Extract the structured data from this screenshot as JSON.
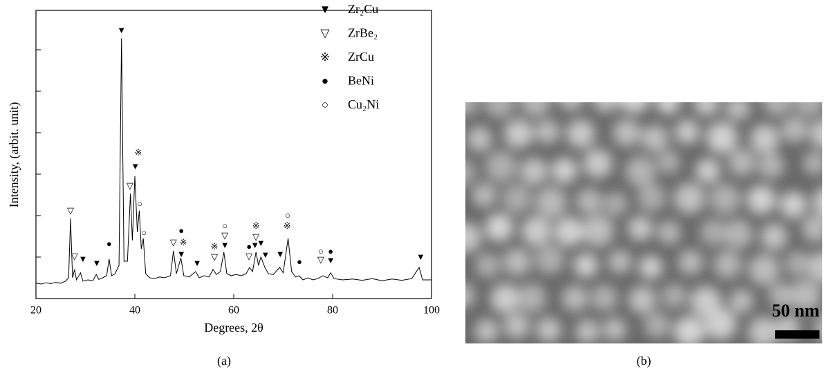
{
  "chart_data": {
    "type": "line",
    "xlabel": "Degrees, 2θ",
    "ylabel": "Intensity, (arbit. unit)",
    "caption": "(a)",
    "color": "#000000",
    "xlim": [
      20,
      100
    ],
    "xticks": [
      20,
      40,
      60,
      80,
      100
    ],
    "ylim": [
      0,
      6.95
    ],
    "yticks": [
      1,
      2,
      3,
      4,
      5,
      6
    ],
    "x": [
      20,
      21,
      22,
      23,
      24,
      25,
      26,
      26.6,
      27.0,
      27.4,
      27.8,
      28.2,
      29.0,
      29.5,
      30.5,
      31.5,
      32.2,
      32.7,
      33.5,
      34.3,
      34.8,
      35.3,
      36.0,
      36.8,
      37.3,
      37.8,
      38.5,
      39.1,
      39.5,
      40.0,
      40.5,
      40.9,
      41.3,
      41.7,
      42.2,
      43,
      44,
      45,
      46,
      47.2,
      47.8,
      48.4,
      49.3,
      49.9,
      51,
      52.3,
      53,
      54,
      55,
      55.8,
      56.5,
      57.3,
      58.0,
      58.6,
      59.5,
      60.5,
      61.5,
      62.5,
      63.2,
      63.8,
      64.5,
      65.0,
      65.5,
      66.3,
      67.0,
      68,
      69.3,
      70.0,
      71.0,
      71.7,
      72.5,
      73.2,
      74,
      75,
      76,
      77,
      78,
      79,
      79.6,
      80.3,
      82,
      84,
      86,
      88,
      90,
      92,
      94,
      96,
      97.5,
      98.2,
      100
    ],
    "values": [
      0.37,
      0.35,
      0.38,
      0.36,
      0.39,
      0.37,
      0.42,
      0.5,
      1.93,
      0.5,
      0.7,
      0.45,
      0.62,
      0.42,
      0.45,
      0.43,
      0.58,
      0.46,
      0.5,
      0.55,
      0.95,
      0.55,
      0.6,
      0.8,
      6.28,
      0.9,
      0.9,
      2.53,
      1.4,
      2.95,
      1.6,
      2.12,
      1.2,
      1.45,
      0.6,
      0.5,
      0.48,
      0.52,
      0.5,
      0.55,
      1.15,
      0.6,
      0.98,
      0.55,
      0.52,
      0.65,
      0.5,
      0.55,
      0.52,
      0.7,
      0.58,
      0.65,
      1.12,
      0.6,
      0.55,
      0.58,
      0.55,
      0.6,
      0.75,
      0.65,
      1.12,
      0.8,
      1.0,
      0.75,
      0.6,
      0.58,
      0.75,
      0.62,
      1.45,
      0.65,
      0.52,
      0.55,
      0.45,
      0.5,
      0.45,
      0.48,
      0.55,
      0.5,
      0.62,
      0.48,
      0.45,
      0.47,
      0.44,
      0.48,
      0.43,
      0.47,
      0.44,
      0.48,
      0.75,
      0.45,
      0.45
    ],
    "legend": [
      {
        "symbol": "▼",
        "name": "Zr₂Cu"
      },
      {
        "symbol": "▽",
        "name": "ZrBe₂"
      },
      {
        "symbol": "※",
        "name": "ZrCu"
      },
      {
        "symbol": "●",
        "name": "BeNi"
      },
      {
        "symbol": "○",
        "name": "Cu₂Ni"
      }
    ],
    "markers": [
      {
        "symbol": "▼",
        "x": 37.3,
        "y": 6.45
      },
      {
        "symbol": "※",
        "x": 40.7,
        "y": 3.5
      },
      {
        "symbol": "▼",
        "x": 40.1,
        "y": 3.17
      },
      {
        "symbol": "▽",
        "x": 39.0,
        "y": 2.7
      },
      {
        "symbol": "○",
        "x": 41.0,
        "y": 2.27
      },
      {
        "symbol": "○",
        "x": 41.8,
        "y": 1.57
      },
      {
        "symbol": "▽",
        "x": 27.0,
        "y": 2.1
      },
      {
        "symbol": "▽",
        "x": 27.8,
        "y": 1.0
      },
      {
        "symbol": "▼",
        "x": 29.5,
        "y": 0.93
      },
      {
        "symbol": "▼",
        "x": 32.3,
        "y": 0.83
      },
      {
        "symbol": "●",
        "x": 34.8,
        "y": 1.3
      },
      {
        "symbol": "▽",
        "x": 47.8,
        "y": 1.33
      },
      {
        "symbol": "※",
        "x": 49.8,
        "y": 1.33
      },
      {
        "symbol": "●",
        "x": 49.4,
        "y": 1.62
      },
      {
        "symbol": "▼",
        "x": 49.4,
        "y": 1.05
      },
      {
        "symbol": "▼",
        "x": 52.6,
        "y": 0.83
      },
      {
        "symbol": "※",
        "x": 56.1,
        "y": 1.23
      },
      {
        "symbol": "▽",
        "x": 56.1,
        "y": 0.98
      },
      {
        "symbol": "○",
        "x": 58.2,
        "y": 1.73
      },
      {
        "symbol": "▽",
        "x": 58.2,
        "y": 1.5
      },
      {
        "symbol": "▼",
        "x": 58.2,
        "y": 1.27
      },
      {
        "symbol": "●",
        "x": 63.1,
        "y": 1.23
      },
      {
        "symbol": "▽",
        "x": 63.1,
        "y": 1.0
      },
      {
        "symbol": "※",
        "x": 64.5,
        "y": 1.73
      },
      {
        "symbol": "▽",
        "x": 64.5,
        "y": 1.47
      },
      {
        "symbol": "▼",
        "x": 64.3,
        "y": 1.27
      },
      {
        "symbol": "▼",
        "x": 65.5,
        "y": 1.32
      },
      {
        "symbol": "▼",
        "x": 66.4,
        "y": 1.03
      },
      {
        "symbol": "▼",
        "x": 69.4,
        "y": 1.05
      },
      {
        "symbol": "●",
        "x": 73.3,
        "y": 0.87
      },
      {
        "symbol": "○",
        "x": 70.9,
        "y": 1.98
      },
      {
        "symbol": "※",
        "x": 70.8,
        "y": 1.73
      },
      {
        "symbol": "○",
        "x": 77.6,
        "y": 1.12
      },
      {
        "symbol": "▽",
        "x": 77.6,
        "y": 0.92
      },
      {
        "symbol": "●",
        "x": 79.6,
        "y": 1.12
      },
      {
        "symbol": "▼",
        "x": 79.6,
        "y": 0.9
      },
      {
        "symbol": "▼",
        "x": 97.8,
        "y": 0.98
      }
    ]
  },
  "micrograph": {
    "scale_bar": "50 nm",
    "caption": "(b)"
  }
}
